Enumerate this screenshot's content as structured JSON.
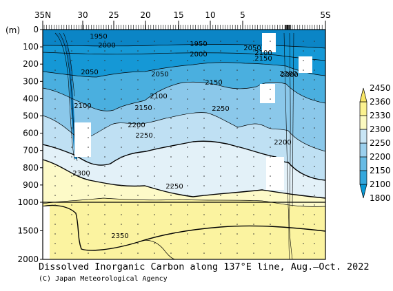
{
  "chart_data": {
    "type": "heatmap",
    "title": "Dissolved Inorganic Carbon along 137°E line, Aug.–Oct. 2022",
    "credit": "(C) Japan Meteorological Agency",
    "ylabel": "(m)",
    "x_ticks": [
      "35N",
      "30",
      "25",
      "20",
      "15",
      "10",
      "5",
      "5S"
    ],
    "y_ticks_upper": [
      "0",
      "100",
      "200",
      "300",
      "400",
      "500",
      "600",
      "700",
      "800",
      "900",
      "1000"
    ],
    "y_ticks_lower": [
      "1500",
      "2000"
    ],
    "xlim": [
      35,
      -5
    ],
    "ylim": [
      2000,
      0
    ],
    "colorbar": {
      "labels": [
        "1800",
        "2100",
        "2150",
        "2200",
        "2250",
        "2300",
        "2330",
        "2360",
        "2450"
      ],
      "colors": [
        "#0a9ad6",
        "#34a8dd",
        "#66bbe5",
        "#9bd0ee",
        "#c8e5f5",
        "#fcfac0",
        "#fbf28f",
        "#f8e665"
      ]
    },
    "contour_labels": [
      "1950",
      "2000",
      "2050",
      "2100",
      "2150",
      "2200",
      "2250",
      "2300",
      "2350",
      "1950",
      "2000",
      "2050",
      "2100",
      "2150",
      "2050",
      "2100",
      "2150",
      "2200",
      "2250",
      "2200",
      "2250",
      "2300",
      "2200"
    ]
  }
}
